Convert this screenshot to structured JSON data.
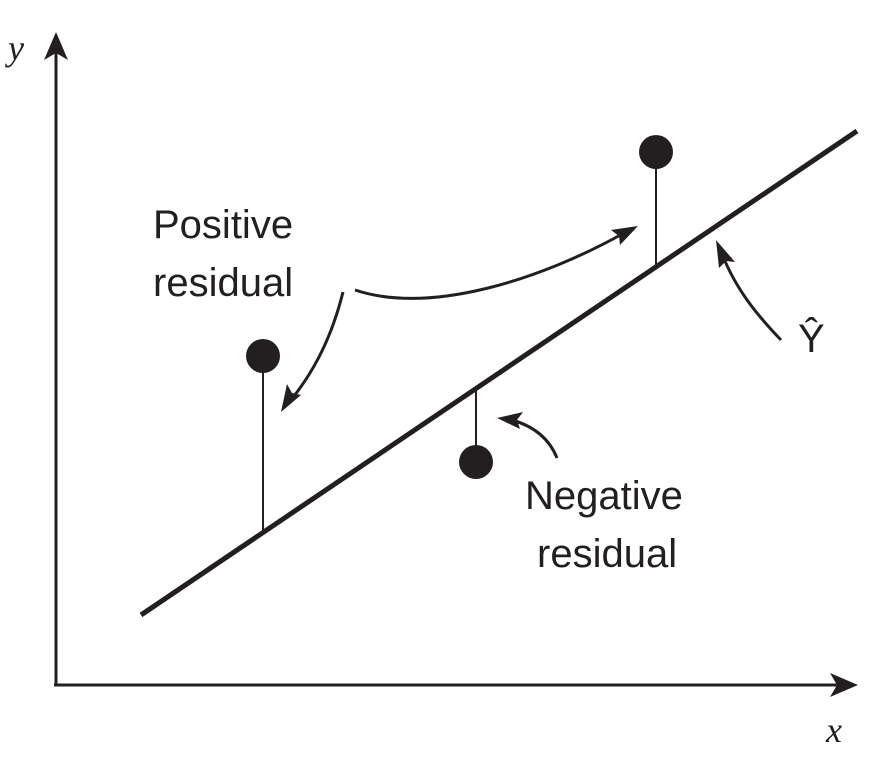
{
  "axes": {
    "x_label": "x",
    "y_label": "y"
  },
  "labels": {
    "positive_line1": "Positive",
    "positive_line2": "residual",
    "negative_line1": "Negative",
    "negative_line2": "residual",
    "fitted_symbol": "Ŷ"
  },
  "colors": {
    "ink": "#231f20",
    "background": "#ffffff"
  }
}
